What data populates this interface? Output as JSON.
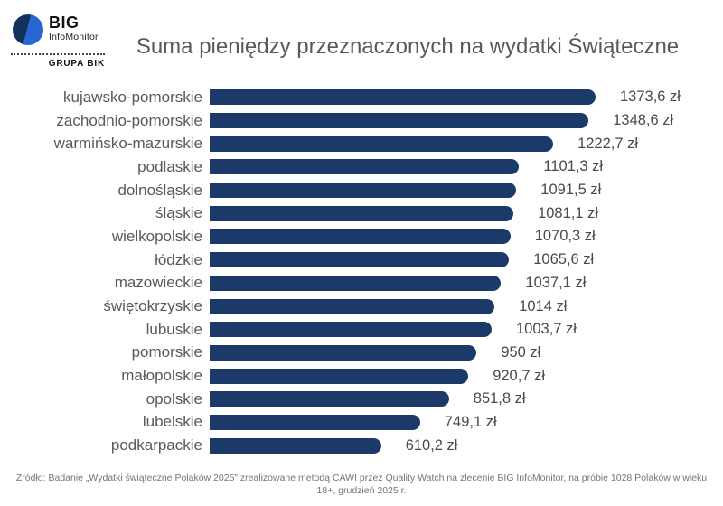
{
  "logo": {
    "big": "BIG",
    "infomonitor": "InfoMonitor",
    "grupa": "GRUPA BIK"
  },
  "title": "Suma pieniędzy przeznaczonych na wydatki Świąteczne",
  "footer": "Źródło: Badanie „Wydatki świąteczne Polaków 2025” zrealizowane metodą CAWI przez Quality Watch na zlecenie BIG InfoMonitor, na próbie 1028 Polaków w wieku 18+, grudzień 2025 r.",
  "colors": {
    "bar": "#1c3a69",
    "label_text": "#595959",
    "value_text": "#4a4a4a",
    "title_text": "#595959",
    "footer_text": "#757575",
    "logo_dark_blue": "#14315e",
    "logo_light_blue": "#2767d3"
  },
  "chart_data": {
    "type": "bar",
    "orientation": "horizontal",
    "title": "Suma pieniędzy przeznaczonych na wydatki Świąteczne",
    "xlabel": "",
    "ylabel": "",
    "xlim": [
      0,
      1450
    ],
    "grid": false,
    "legend": false,
    "unit": "zł",
    "categories": [
      "kujawsko-pomorskie",
      "zachodnio-pomorskie",
      "warmińsko-mazurskie",
      "podlaskie",
      "dolnośląskie",
      "śląskie",
      "wielkopolskie",
      "łódzkie",
      "mazowieckie",
      "świętokrzyskie",
      "lubuskie",
      "pomorskie",
      "małopolskie",
      "opolskie",
      "lubelskie",
      "podkarpackie"
    ],
    "values": [
      1373.6,
      1348.6,
      1222.7,
      1101.3,
      1091.5,
      1081.1,
      1070.3,
      1065.6,
      1037.1,
      1014,
      1003.7,
      950,
      920.7,
      851.8,
      749.1,
      610.2
    ],
    "value_labels": [
      "1373,6 zł",
      "1348,6 zł",
      "1222,7 zł",
      "1101,3 zł",
      "1091,5 zł",
      "1081,1 zł",
      "1070,3 zł",
      "1065,6 zł",
      "1037,1 zł",
      "1014 zł",
      "1003,7 zł",
      "950 zł",
      "920,7 zł",
      "851,8 zł",
      "749,1 zł",
      "610,2 zł"
    ]
  }
}
